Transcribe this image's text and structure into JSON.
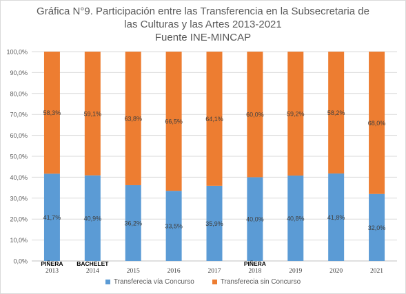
{
  "title_lines": [
    "Gráfica N°9. Participación entre las Transferencia en la Subsecretaria de",
    "las Culturas y  las Artes 2013-2021",
    "Fuente INE-MINCAP"
  ],
  "chart_data": {
    "type": "bar",
    "stacked": true,
    "categories": [
      "2013",
      "2014",
      "2015",
      "2016",
      "2017",
      "2018",
      "2019",
      "2020",
      "2021"
    ],
    "category_annotations": [
      "PIÑERA",
      "BACHELET",
      "",
      "",
      "",
      "PIÑERA",
      "",
      "",
      ""
    ],
    "series": [
      {
        "name": "Transferecia vía Concurso",
        "color": "#5b9bd5",
        "values": [
          41.7,
          40.9,
          36.2,
          33.5,
          35.9,
          40.0,
          40.8,
          41.8,
          32.0
        ],
        "labels": [
          "41,7%",
          "40,9%",
          "36,2%",
          "33,5%",
          "35,9%",
          "40,0%",
          "40,8%",
          "41,8%",
          "32,0%"
        ]
      },
      {
        "name": "Transferecia sin Concurso",
        "color": "#ed7d31",
        "values": [
          58.3,
          59.1,
          63.8,
          66.5,
          64.1,
          60.0,
          59.2,
          58.2,
          68.0
        ],
        "labels": [
          "58,3%",
          "59,1%",
          "63,8%",
          "66,5%",
          "64,1%",
          "60,0%",
          "59,2%",
          "58,2%",
          "68,0%"
        ]
      }
    ],
    "y_ticks": [
      "0,0%",
      "10,0%",
      "20,0%",
      "30,0%",
      "40,0%",
      "50,0%",
      "60,0%",
      "70,0%",
      "80,0%",
      "90,0%",
      "100,0%"
    ],
    "ylim": [
      0,
      100
    ],
    "grid": true,
    "legend_position": "bottom"
  }
}
